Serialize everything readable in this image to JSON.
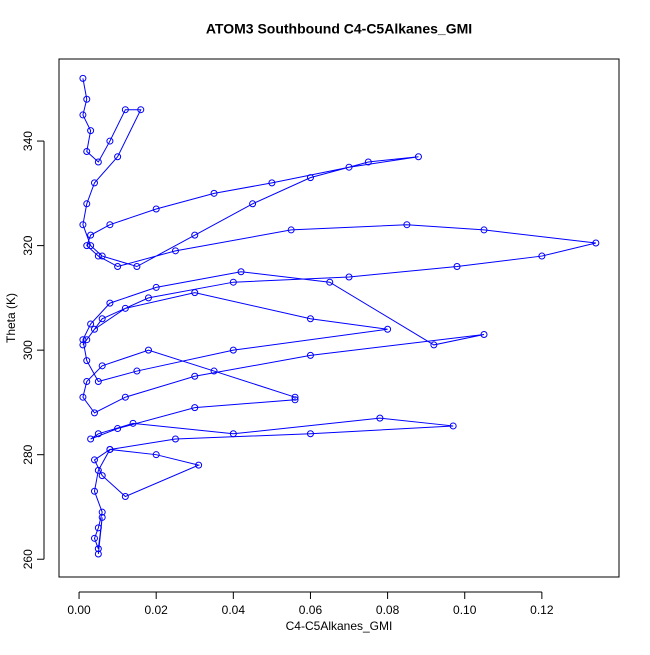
{
  "chart_data": {
    "type": "line",
    "markers": true,
    "title": "ATOM3 Southbound C4-C5Alkanes_GMI",
    "x_label": "C4-C5Alkanes_GMI",
    "y_label": "Theta (K)",
    "color": "#0000ff",
    "xlim": [
      -0.0052,
      0.14
    ],
    "ylim": [
      256.6,
      355.7
    ],
    "xticks": [
      {
        "value": 0,
        "label": "0.00"
      },
      {
        "value": 0.02,
        "label": "0.02"
      },
      {
        "value": 0.04,
        "label": "0.04"
      },
      {
        "value": 0.06,
        "label": "0.06"
      },
      {
        "value": 0.08,
        "label": "0.08"
      },
      {
        "value": 0.1,
        "label": "0.10"
      },
      {
        "value": 0.12,
        "label": "0.12"
      }
    ],
    "yticks": [
      260,
      280,
      300,
      320,
      340
    ],
    "x": [
      0.001,
      0.002,
      0.001,
      0.003,
      0.002,
      0.005,
      0.008,
      0.012,
      0.016,
      0.01,
      0.004,
      0.002,
      0.001,
      0.003,
      0.006,
      0.015,
      0.03,
      0.045,
      0.06,
      0.075,
      0.088,
      0.07,
      0.05,
      0.035,
      0.02,
      0.008,
      0.003,
      0.002,
      0.005,
      0.01,
      0.025,
      0.055,
      0.085,
      0.105,
      0.134,
      0.12,
      0.098,
      0.07,
      0.04,
      0.018,
      0.006,
      0.002,
      0.001,
      0.004,
      0.012,
      0.03,
      0.06,
      0.08,
      0.04,
      0.015,
      0.005,
      0.002,
      0.001,
      0.003,
      0.008,
      0.02,
      0.042,
      0.065,
      0.092,
      0.105,
      0.06,
      0.03,
      0.012,
      0.004,
      0.001,
      0.002,
      0.006,
      0.018,
      0.035,
      0.056,
      0.056,
      0.03,
      0.01,
      0.003,
      0.005,
      0.014,
      0.04,
      0.078,
      0.097,
      0.06,
      0.025,
      0.008,
      0.004,
      0.006,
      0.012,
      0.031,
      0.02,
      0.008,
      0.005,
      0.004,
      0.006,
      0.005,
      0.004,
      0.005,
      0.006,
      0.005
    ],
    "values": [
      352,
      348,
      345,
      342,
      338,
      336,
      340,
      346,
      346,
      337,
      332,
      328,
      324,
      320,
      318,
      316,
      322,
      328,
      333,
      336,
      337,
      335,
      332,
      330,
      327,
      324,
      322,
      320,
      318,
      316,
      319,
      323,
      324,
      323,
      320.5,
      318,
      316,
      314,
      313,
      310,
      306,
      302,
      301,
      304,
      308,
      311,
      306,
      304,
      300,
      296,
      294,
      298,
      302,
      305,
      309,
      312,
      315,
      313,
      301,
      303,
      299,
      295,
      291,
      288,
      291,
      294,
      297,
      300,
      296,
      291,
      290.5,
      289,
      285,
      283,
      284,
      286,
      284,
      287,
      285.5,
      284,
      283,
      281,
      279,
      276,
      272,
      278,
      280,
      281,
      277,
      273,
      269,
      266,
      264,
      262,
      268,
      261
    ]
  }
}
